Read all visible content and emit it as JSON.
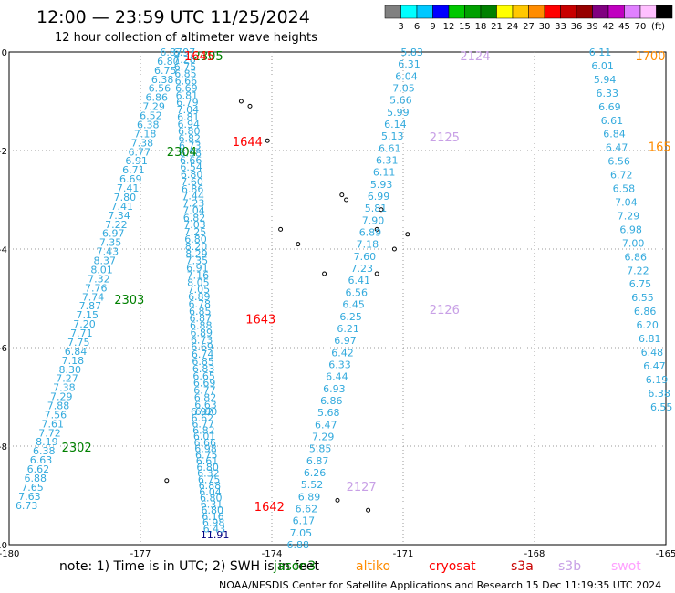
{
  "title": "12:00 — 23:59 UTC 11/25/2024",
  "subtitle": "12 hour collection of altimeter wave heights",
  "colorbar": {
    "unit": "(ft)",
    "colors": [
      "#808080",
      "#00ffff",
      "#00c8ff",
      "#0000ff",
      "#00c800",
      "#00a000",
      "#008000",
      "#ffff00",
      "#ffc800",
      "#ff8c00",
      "#ff0000",
      "#c80000",
      "#960000",
      "#800080",
      "#c000c0",
      "#e080ff",
      "#ffc0ff",
      "#000000"
    ],
    "labels": [
      "3",
      "6",
      "9",
      "12",
      "15",
      "18",
      "21",
      "24",
      "27",
      "30",
      "33",
      "36",
      "39",
      "42",
      "45",
      "70"
    ]
  },
  "note": "note: 1) Time is in UTC; 2) SWH is in feet",
  "satellites": [
    {
      "name": "jason3",
      "color": "#008000"
    },
    {
      "name": "altiko",
      "color": "#ff8c00"
    },
    {
      "name": "cryosat",
      "color": "#ff0000"
    },
    {
      "name": "s3a",
      "color": "#c80000"
    },
    {
      "name": "s3b",
      "color": "#c8a0e6"
    },
    {
      "name": "swot",
      "color": "#ffa0ff"
    }
  ],
  "credit": "NOAA/NESDIS Center for Satellite Applications and Research   15 Dec 11:19:35 UTC 2024",
  "chart_data": {
    "type": "scatter",
    "xlim": [
      -180,
      -165
    ],
    "ylim": [
      -10,
      0
    ],
    "x_ticks": [
      -180,
      -177,
      -174,
      -171,
      -168,
      -165
    ],
    "y_ticks": [
      0,
      -2,
      -4,
      -6,
      -8,
      -10
    ],
    "grid": true,
    "value_color": "#33aadd",
    "tracks": [
      {
        "name": "jason3_2302_2303_2304",
        "values": [
          "6.87",
          "6.80",
          "6.75",
          "6.38",
          "6.56",
          "6.86",
          "7.29",
          "6.52",
          "6.38",
          "7.18",
          "7.38",
          "6.77",
          "6.91",
          "6.71",
          "6.69",
          "7.41",
          "7.80",
          "7.41",
          "7.34",
          "7.22",
          "6.97",
          "7.35",
          "7.43",
          "8.37",
          "8.01",
          "7.32",
          "7.76",
          "7.74",
          "7.87",
          "7.15",
          "7.20",
          "7.71",
          "7.75",
          "6.84",
          "7.18",
          "8.30",
          "7.27",
          "7.38",
          "7.29",
          "7.88",
          "7.56",
          "7.61",
          "7.72",
          "8.19",
          "6.38",
          "6.63",
          "6.62",
          "6.88",
          "7.65",
          "7.63",
          "6.73"
        ],
        "lon_start": -179.6,
        "lat_start": -9.2,
        "lon_end": -176.3,
        "lat_end": 0
      },
      {
        "name": "cryosat_1642_1645_a",
        "values": [
          "6.80",
          "6.63",
          "6.82",
          "6.77",
          "6.69",
          "6.65",
          "6.83",
          "6.85",
          "6.74",
          "6.69",
          "6.73",
          "6.89",
          "6.88",
          "6.87",
          "6.85",
          "6.78",
          "6.89",
          "7.05",
          "8.05",
          "7.16",
          "6.91",
          "7.35",
          "8.29",
          "8.20",
          "6.80",
          "7.25",
          "7.03",
          "6.82",
          "7.04",
          "7.23",
          "7.44",
          "6.86",
          "7.60",
          "6.80",
          "6.54",
          "6.66",
          "6.98",
          "6.73",
          "6.82",
          "6.80",
          "6.94",
          "6.81",
          "7.04",
          "6.79",
          "6.81",
          "6.69",
          "6.66",
          "6.85",
          "6.75",
          "7.28",
          "6.97"
        ],
        "lon_start": -176.0,
        "lat_start": 0,
        "lon_end": -175.5,
        "lat_end": -7.3
      },
      {
        "name": "cryosat_1642_1645_b",
        "values": [
          "11.91",
          "6.43",
          "6.98",
          "6.16",
          "6.80",
          "6.31",
          "6.80",
          "6.04",
          "6.88",
          "6.75",
          "6.32",
          "6.80",
          "6.61",
          "6.75",
          "6.98",
          "6.66",
          "6.01",
          "6.82",
          "6.77",
          "6.62",
          "6.92"
        ],
        "lon_start": -175.6,
        "lat_start": -7.3,
        "lon_end": -175.3,
        "lat_end": -9.8
      },
      {
        "name": "s3b_2124_2127",
        "values": [
          "6.88",
          "7.05",
          "6.17",
          "6.62",
          "6.89",
          "5.52",
          "6.26",
          "6.87",
          "5.85",
          "7.29",
          "6.47",
          "5.68",
          "6.86",
          "6.93",
          "6.44",
          "6.33",
          "6.42",
          "6.97",
          "6.21",
          "6.25",
          "6.45",
          "6.56",
          "6.41",
          "7.23",
          "7.60",
          "7.18",
          "6.89",
          "7.90",
          "5.81",
          "6.99",
          "5.93",
          "6.11",
          "6.31",
          "6.61",
          "5.13",
          "6.14",
          "5.99",
          "5.66",
          "7.05",
          "6.04",
          "6.31",
          "5.83"
        ],
        "lon_start": -170.8,
        "lat_start": 0,
        "lon_end": -173.4,
        "lat_end": -10
      },
      {
        "name": "altiko_1650_1700",
        "values": [
          "6.55",
          "6.38",
          "6.19",
          "6.47",
          "6.48",
          "6.81",
          "6.20",
          "6.86",
          "6.55",
          "6.75",
          "7.22",
          "6.86",
          "7.00",
          "6.98",
          "7.29",
          "7.04",
          "6.58",
          "6.72",
          "6.56",
          "6.47",
          "6.84",
          "6.61",
          "6.69",
          "6.33",
          "5.94",
          "6.01",
          "6.11"
        ],
        "lon_start": -166.5,
        "lat_start": 0,
        "lon_end": -165.1,
        "lat_end": -7.2
      }
    ],
    "pass_labels": [
      {
        "text": "2305",
        "sat": "jason3",
        "lon": -175.8,
        "lat": 0
      },
      {
        "text": "1645",
        "sat": "cryosat",
        "lon": -176.0,
        "lat": 0
      },
      {
        "text": "2304",
        "sat": "jason3",
        "lon": -176.4,
        "lat": -2
      },
      {
        "text": "1644",
        "sat": "cryosat",
        "lon": -174.9,
        "lat": -1.8
      },
      {
        "text": "2303",
        "sat": "jason3",
        "lon": -177.6,
        "lat": -5
      },
      {
        "text": "1643",
        "sat": "cryosat",
        "lon": -174.6,
        "lat": -5.4
      },
      {
        "text": "2302",
        "sat": "jason3",
        "lon": -178.8,
        "lat": -8
      },
      {
        "text": "1642",
        "sat": "cryosat",
        "lon": -174.4,
        "lat": -9.2
      },
      {
        "text": "2124",
        "sat": "s3b",
        "lon": -169.7,
        "lat": 0
      },
      {
        "text": "2125",
        "sat": "s3b",
        "lon": -170.4,
        "lat": -1.7
      },
      {
        "text": "2126",
        "sat": "s3b",
        "lon": -170.4,
        "lat": -5.2
      },
      {
        "text": "2127",
        "sat": "s3b",
        "lon": -172.3,
        "lat": -8.8
      },
      {
        "text": "1700",
        "sat": "altiko",
        "lon": -165.7,
        "lat": 0
      },
      {
        "text": "165",
        "sat": "altiko",
        "lon": -165.4,
        "lat": -1.9
      }
    ],
    "islands": [
      {
        "lon": -174.7,
        "lat": -1.0
      },
      {
        "lon": -174.5,
        "lat": -1.1
      },
      {
        "lon": -174.1,
        "lat": -1.8
      },
      {
        "lon": -173.8,
        "lat": -3.6
      },
      {
        "lon": -173.4,
        "lat": -3.9
      },
      {
        "lon": -172.4,
        "lat": -2.9
      },
      {
        "lon": -172.3,
        "lat": -3.0
      },
      {
        "lon": -171.5,
        "lat": -3.2
      },
      {
        "lon": -171.6,
        "lat": -3.6
      },
      {
        "lon": -170.9,
        "lat": -3.7
      },
      {
        "lon": -171.2,
        "lat": -4.0
      },
      {
        "lon": -172.8,
        "lat": -4.5
      },
      {
        "lon": -171.6,
        "lat": -4.5
      },
      {
        "lon": -172.5,
        "lat": -9.1
      },
      {
        "lon": -171.8,
        "lat": -9.3
      },
      {
        "lon": -176.4,
        "lat": -8.7
      }
    ]
  }
}
